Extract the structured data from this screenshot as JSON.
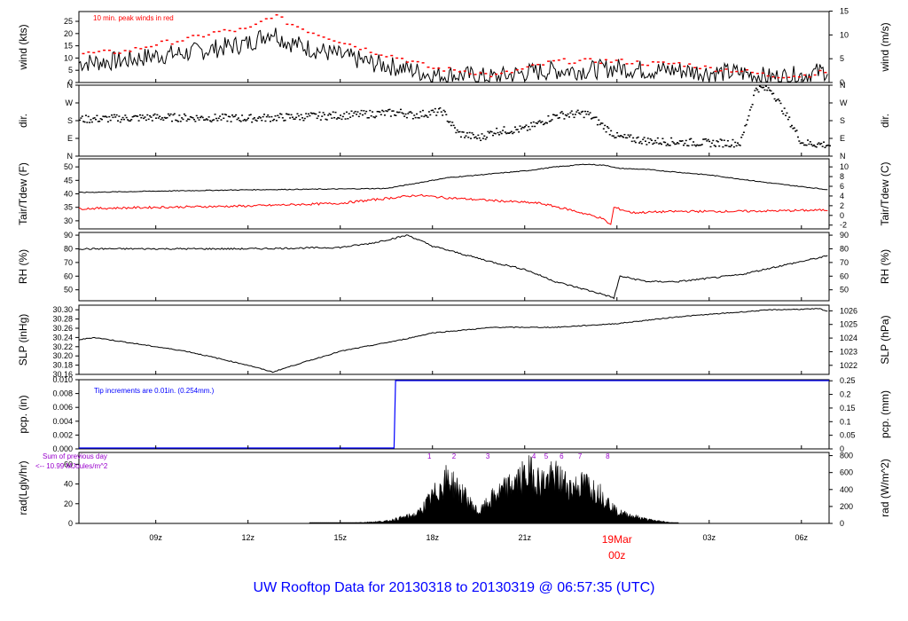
{
  "footer_title": "UW Rooftop Data for 20130318  to  20130319 @ 06:57:35  (UTC)",
  "colors": {
    "black": "#000000",
    "red": "#ff0000",
    "blue": "#0000ff",
    "purple": "#9900cc",
    "title_blue": "#0000ff"
  },
  "x_axis": {
    "ticks": [
      "09z",
      "12z",
      "15z",
      "18z",
      "21z",
      "00z",
      "03z",
      "06z"
    ],
    "tick_hours": [
      9,
      12,
      15,
      18,
      21,
      24,
      27,
      30
    ],
    "date_marker": {
      "label": "19Mar",
      "sub": "00z",
      "hour": 24
    },
    "range_hours": [
      6.5,
      30.9
    ]
  },
  "chart_data": [
    {
      "type": "line",
      "id": "wind",
      "ylabel": "wind (kts)",
      "ylabel_right": "wind (m/s)",
      "yticks": [
        0,
        5,
        10,
        15,
        20,
        25
      ],
      "ylim": [
        0,
        29
      ],
      "yticks_right": [
        0,
        5,
        10,
        15
      ],
      "right_factor": 1.9438,
      "annotation": "10 min. peak winds in red",
      "series": [
        {
          "name": "wind",
          "x": [
            6.5,
            8,
            9,
            10,
            11,
            12,
            12.8,
            13.2,
            14,
            15,
            16,
            17,
            18,
            19,
            20,
            21,
            22,
            23,
            24,
            25,
            26,
            27,
            28,
            29,
            30,
            30.9
          ],
          "y": [
            8,
            9,
            11,
            12,
            14,
            16,
            21,
            17,
            14,
            11,
            8,
            6,
            3,
            3,
            2,
            4,
            5,
            5,
            6,
            5,
            5,
            4,
            4,
            2,
            3,
            5
          ]
        },
        {
          "name": "peak",
          "x": [
            6.5,
            8,
            9,
            10,
            11,
            12,
            12.8,
            13.2,
            14,
            15,
            16,
            17,
            18,
            19,
            20,
            21,
            22,
            23,
            24,
            25,
            26,
            27,
            28,
            29,
            30,
            30.9
          ],
          "y": [
            12,
            13,
            16,
            18,
            21,
            22,
            28,
            25,
            21,
            17,
            13,
            10,
            6,
            5,
            3,
            6,
            9,
            9,
            9,
            8,
            8,
            6,
            5,
            3,
            3,
            5
          ]
        }
      ]
    },
    {
      "type": "scatter",
      "id": "dir",
      "ylabel": "dir.",
      "ylabel_right": "dir.",
      "yticklabels": [
        "N",
        "E",
        "S",
        "W",
        "N"
      ],
      "yticks": [
        0,
        90,
        180,
        270,
        360
      ],
      "ylim": [
        0,
        360
      ],
      "series": [
        {
          "name": "dir",
          "x": [
            6.5,
            9,
            12,
            15,
            17,
            17.3,
            18.3,
            18.8,
            19.5,
            20,
            21,
            22,
            23,
            24,
            25,
            26,
            27,
            28,
            28.5,
            29,
            30,
            30.9
          ],
          "y": [
            190,
            200,
            195,
            210,
            225,
            210,
            230,
            120,
            95,
            130,
            140,
            210,
            220,
            100,
            80,
            75,
            70,
            70,
            350,
            340,
            70,
            60
          ]
        }
      ]
    },
    {
      "type": "line",
      "id": "temp",
      "ylabel": "Tair/Tdew (F)",
      "ylabel_right": "Tair/Tdew (C)",
      "yticks": [
        30,
        35,
        40,
        45,
        50
      ],
      "ylim": [
        27,
        53
      ],
      "yticks_right": [
        -2,
        0,
        2,
        4,
        6,
        8,
        10
      ],
      "series": [
        {
          "name": "Tair",
          "x": [
            6.5,
            9,
            12,
            15,
            16.5,
            17.5,
            18.5,
            19.5,
            21,
            22,
            23,
            23.7,
            24,
            25,
            27,
            29,
            30.9
          ],
          "y": [
            40.5,
            41,
            41.5,
            41.8,
            42,
            44,
            46,
            47,
            48.5,
            50,
            51,
            50.5,
            49.5,
            49,
            47,
            44,
            41.5
          ]
        },
        {
          "name": "Tdew",
          "x": [
            6.5,
            9,
            12,
            15,
            17.5,
            18.5,
            20,
            21.5,
            22.5,
            23.5,
            23.8,
            23.9,
            24.5,
            26,
            28,
            30.9
          ],
          "y": [
            34.5,
            35,
            35.5,
            36.5,
            39.5,
            38.5,
            37.5,
            36.5,
            34,
            31,
            28.5,
            35,
            33,
            33.5,
            33.5,
            34
          ]
        }
      ]
    },
    {
      "type": "line",
      "id": "rh",
      "ylabel": "RH (%)",
      "ylabel_right": "RH (%)",
      "yticks": [
        50,
        60,
        70,
        80,
        90
      ],
      "ylim": [
        42,
        92
      ],
      "series": [
        {
          "name": "RH",
          "x": [
            6.5,
            9,
            12,
            15,
            16,
            17.2,
            18,
            19,
            20,
            21,
            22,
            23.5,
            23.9,
            24.1,
            25,
            26,
            28,
            29,
            30.9
          ],
          "y": [
            80,
            80,
            80,
            81,
            84,
            90,
            82,
            76,
            70,
            65,
            56,
            47,
            44,
            60,
            56,
            56,
            61,
            66,
            75
          ]
        }
      ]
    },
    {
      "type": "line",
      "id": "slp",
      "ylabel": "SLP (inHg)",
      "ylabel_right": "SLP (hPa)",
      "yticks": [
        30.16,
        30.18,
        30.2,
        30.22,
        30.24,
        30.26,
        30.28,
        30.3
      ],
      "ylim": [
        30.16,
        30.31
      ],
      "yticks_right": [
        1022,
        1023,
        1024,
        1025,
        1026
      ],
      "series": [
        {
          "name": "SLP",
          "x": [
            6.5,
            7,
            8,
            9,
            10,
            11,
            12,
            12.8,
            13.5,
            15,
            17,
            18,
            20,
            22,
            24,
            26,
            28,
            29,
            30.6,
            30.9
          ],
          "y": [
            30.235,
            30.24,
            30.23,
            30.22,
            30.21,
            30.195,
            30.18,
            30.165,
            30.18,
            30.21,
            30.235,
            30.25,
            30.262,
            30.262,
            30.27,
            30.285,
            30.295,
            30.3,
            30.302,
            30.295
          ]
        }
      ]
    },
    {
      "type": "line",
      "id": "pcp",
      "ylabel": "pcp. (in)",
      "ylabel_right": "pcp. (mm)",
      "yticks": [
        0.0,
        0.002,
        0.004,
        0.006,
        0.008,
        0.01
      ],
      "ylim": [
        0,
        0.01
      ],
      "yticks_right": [
        0,
        0.05,
        0.1,
        0.15,
        0.2,
        0.25
      ],
      "annotation": "Tip increments are 0.01in. (0.254mm.)",
      "series": [
        {
          "name": "pcp",
          "x": [
            6.5,
            16.75,
            16.8,
            30.9
          ],
          "y": [
            0,
            0,
            0.01,
            0.01
          ]
        }
      ]
    },
    {
      "type": "area",
      "id": "rad",
      "ylabel": "rad(Lgly/hr)",
      "ylabel_right": "rad (W/m^2)",
      "yticks": [
        0,
        20,
        40,
        60
      ],
      "ylim": [
        0,
        72
      ],
      "yticks_right": [
        0,
        200,
        400,
        600,
        800
      ],
      "right_factor": 11.63,
      "annotation_lines": [
        "Sum of previous day",
        "<-- 10.99 MJoules/m^2"
      ],
      "event_labels": [
        "1",
        "2",
        "3",
        "4",
        "5",
        "6",
        "7",
        "8"
      ],
      "event_hours": [
        17.9,
        18.7,
        19.8,
        21.3,
        21.7,
        22.2,
        22.8,
        23.7
      ],
      "series": [
        {
          "name": "rad",
          "x": [
            14,
            15.5,
            16.5,
            17.5,
            18.5,
            19,
            19.5,
            20,
            21.2,
            21.5,
            22,
            22.5,
            23,
            23.5,
            24,
            25,
            25.8,
            26
          ],
          "y": [
            0,
            1,
            3,
            12,
            60,
            38,
            14,
            36,
            68,
            55,
            62,
            48,
            52,
            38,
            15,
            5,
            1,
            0
          ]
        }
      ]
    }
  ]
}
